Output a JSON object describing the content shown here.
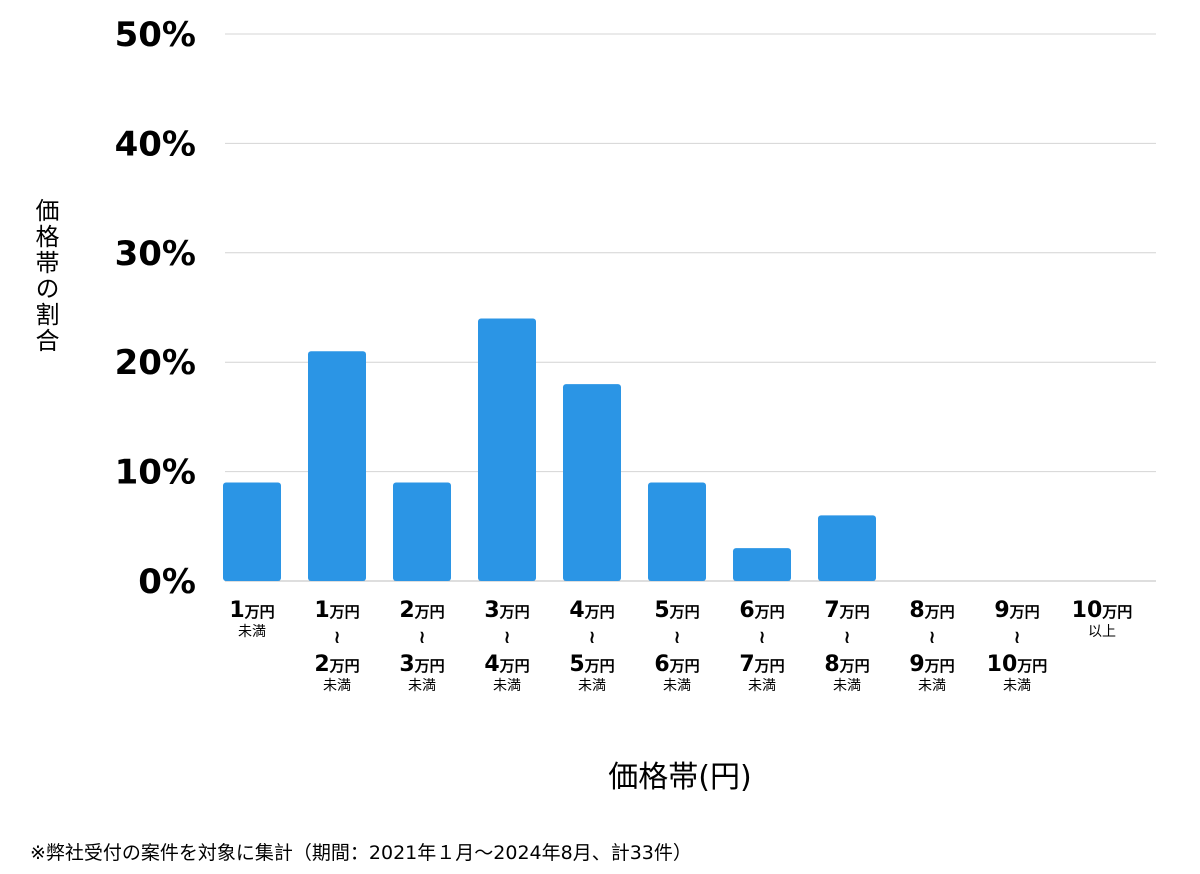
{
  "chart_data": {
    "type": "bar",
    "categories": [
      {
        "from": "1",
        "from_unit": "万円",
        "tilde": "",
        "to": "",
        "to_unit": "",
        "note": "未満"
      },
      {
        "from": "1",
        "from_unit": "万円",
        "tilde": "≀",
        "to": "2",
        "to_unit": "万円",
        "note": "未満"
      },
      {
        "from": "2",
        "from_unit": "万円",
        "tilde": "≀",
        "to": "3",
        "to_unit": "万円",
        "note": "未満"
      },
      {
        "from": "3",
        "from_unit": "万円",
        "tilde": "≀",
        "to": "4",
        "to_unit": "万円",
        "note": "未満"
      },
      {
        "from": "4",
        "from_unit": "万円",
        "tilde": "≀",
        "to": "5",
        "to_unit": "万円",
        "note": "未満"
      },
      {
        "from": "5",
        "from_unit": "万円",
        "tilde": "≀",
        "to": "6",
        "to_unit": "万円",
        "note": "未満"
      },
      {
        "from": "6",
        "from_unit": "万円",
        "tilde": "≀",
        "to": "7",
        "to_unit": "万円",
        "note": "未満"
      },
      {
        "from": "7",
        "from_unit": "万円",
        "tilde": "≀",
        "to": "8",
        "to_unit": "万円",
        "note": "未満"
      },
      {
        "from": "8",
        "from_unit": "万円",
        "tilde": "≀",
        "to": "9",
        "to_unit": "万円",
        "note": "未満"
      },
      {
        "from": "9",
        "from_unit": "万円",
        "tilde": "≀",
        "to": "10",
        "to_unit": "万円",
        "note": "未満"
      },
      {
        "from": "10",
        "from_unit": "万円",
        "tilde": "",
        "to": "",
        "to_unit": "",
        "note": "以上"
      }
    ],
    "values": [
      9,
      21,
      9,
      24,
      18,
      9,
      3,
      6,
      0,
      0,
      0
    ],
    "ylim": [
      0,
      50
    ],
    "yticks": [
      "0%",
      "10%",
      "20%",
      "30%",
      "40%",
      "50%"
    ],
    "ytick_values": [
      0,
      10,
      20,
      30,
      40,
      50
    ],
    "ylabel": "価格帯の割合",
    "xlabel": "価格帯(円)",
    "grid": true,
    "bar_color": "#2b95e5",
    "grid_color": "#d4d4d4"
  },
  "footnote": "※弊社受付の案件を対象に集計（期間：2021年１月〜2024年8月、計33件）"
}
